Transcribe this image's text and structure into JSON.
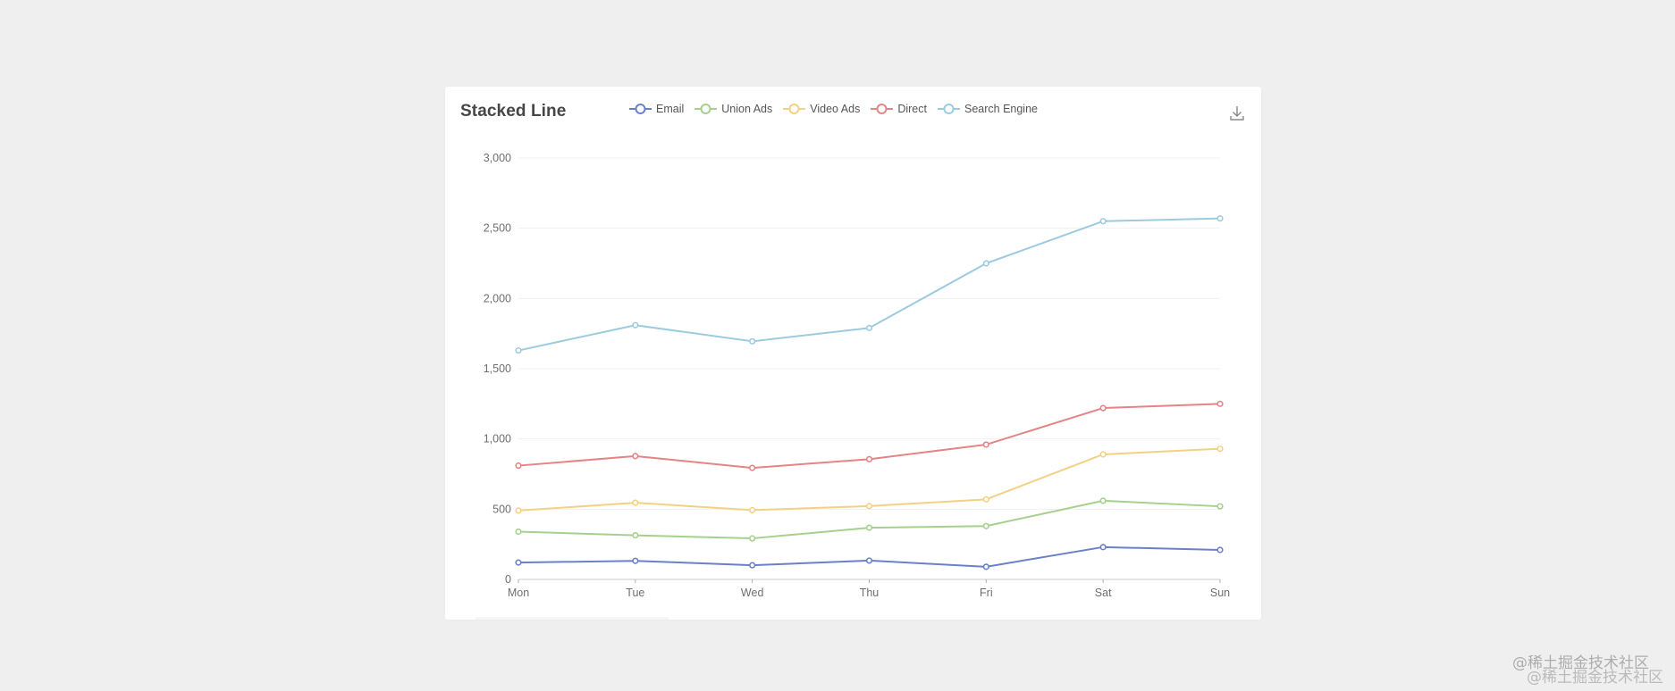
{
  "card": {
    "title": "Stacked Line",
    "download_tooltip": "Save as Image"
  },
  "legend": [
    {
      "name": "Email",
      "color": "#6a80c9"
    },
    {
      "name": "Union Ads",
      "color": "#a6d08e"
    },
    {
      "name": "Video Ads",
      "color": "#f3d184"
    },
    {
      "name": "Direct",
      "color": "#e48484"
    },
    {
      "name": "Search Engine",
      "color": "#9ccbe0"
    }
  ],
  "watermark": {
    "text": "@稀土掘金技术社区"
  },
  "chart_data": {
    "type": "line",
    "stacked": true,
    "title": "Stacked Line",
    "categories": [
      "Mon",
      "Tue",
      "Wed",
      "Thu",
      "Fri",
      "Sat",
      "Sun"
    ],
    "series": [
      {
        "name": "Email",
        "values": [
          120,
          132,
          101,
          134,
          90,
          230,
          210
        ],
        "color": "#6a80c9"
      },
      {
        "name": "Union Ads",
        "values": [
          220,
          182,
          191,
          234,
          290,
          330,
          310
        ],
        "color": "#a6d08e"
      },
      {
        "name": "Video Ads",
        "values": [
          150,
          232,
          201,
          154,
          190,
          330,
          410
        ],
        "color": "#f3d184"
      },
      {
        "name": "Direct",
        "values": [
          320,
          332,
          301,
          334,
          390,
          330,
          320
        ],
        "color": "#e48484"
      },
      {
        "name": "Search Engine",
        "values": [
          820,
          932,
          901,
          934,
          1290,
          1330,
          1320
        ],
        "color": "#9ccbe0"
      }
    ],
    "xlabel": "",
    "ylabel": "",
    "ylim": [
      0,
      3000
    ],
    "yticks": [
      0,
      500,
      1000,
      1500,
      2000,
      2500,
      3000
    ],
    "ytick_labels": [
      "0",
      "500",
      "1,000",
      "1,500",
      "2,000",
      "2,500",
      "3,000"
    ],
    "grid": true,
    "legend_position": "top"
  }
}
